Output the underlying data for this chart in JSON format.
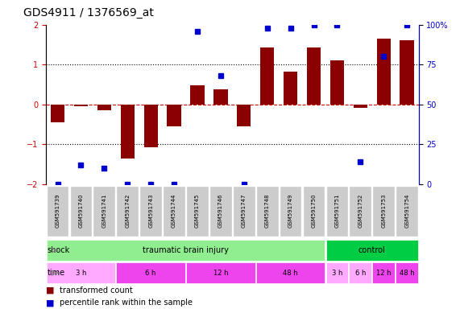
{
  "title": "GDS4911 / 1376569_at",
  "samples": [
    "GSM591739",
    "GSM591740",
    "GSM591741",
    "GSM591742",
    "GSM591743",
    "GSM591744",
    "GSM591745",
    "GSM591746",
    "GSM591747",
    "GSM591748",
    "GSM591749",
    "GSM591750",
    "GSM591751",
    "GSM591752",
    "GSM591753",
    "GSM591754"
  ],
  "bar_values": [
    -0.45,
    -0.05,
    -0.15,
    -1.35,
    -1.08,
    -0.55,
    0.48,
    0.38,
    -0.55,
    1.42,
    0.82,
    1.42,
    1.1,
    -0.08,
    1.65,
    1.62
  ],
  "dot_values": [
    0,
    12,
    10,
    0,
    0,
    0,
    96,
    68,
    0,
    98,
    98,
    100,
    100,
    14,
    80,
    100
  ],
  "ylim_left": [
    -2,
    2
  ],
  "ylim_right": [
    0,
    100
  ],
  "yticks_left": [
    -2,
    -1,
    0,
    1,
    2
  ],
  "yticks_right": [
    0,
    25,
    50,
    75,
    100
  ],
  "ytick_labels_right": [
    "0",
    "25",
    "50",
    "75",
    "100%"
  ],
  "bar_color": "#8B0000",
  "dot_color": "#0000CC",
  "hline_color": "#CC0000",
  "shock_groups": [
    {
      "label": "traumatic brain injury",
      "start": 0,
      "end": 11,
      "color": "#90EE90"
    },
    {
      "label": "control",
      "start": 12,
      "end": 15,
      "color": "#00CC44"
    }
  ],
  "time_groups": [
    {
      "label": "3 h",
      "start": 0,
      "end": 2,
      "color": "#FFAAFF"
    },
    {
      "label": "6 h",
      "start": 3,
      "end": 5,
      "color": "#EE44EE"
    },
    {
      "label": "12 h",
      "start": 6,
      "end": 8,
      "color": "#EE44EE"
    },
    {
      "label": "48 h",
      "start": 9,
      "end": 11,
      "color": "#EE44EE"
    },
    {
      "label": "3 h",
      "start": 12,
      "end": 12,
      "color": "#FFAAFF"
    },
    {
      "label": "6 h",
      "start": 13,
      "end": 13,
      "color": "#FFAAFF"
    },
    {
      "label": "12 h",
      "start": 14,
      "end": 14,
      "color": "#EE44EE"
    },
    {
      "label": "48 h",
      "start": 15,
      "end": 15,
      "color": "#EE44EE"
    }
  ],
  "legend_bar_label": "transformed count",
  "legend_dot_label": "percentile rank within the sample",
  "shock_label": "shock",
  "time_label": "time",
  "bg_color": "#FFFFFF",
  "grid_color": "#DDDDDD",
  "sample_box_color": "#CCCCCC"
}
